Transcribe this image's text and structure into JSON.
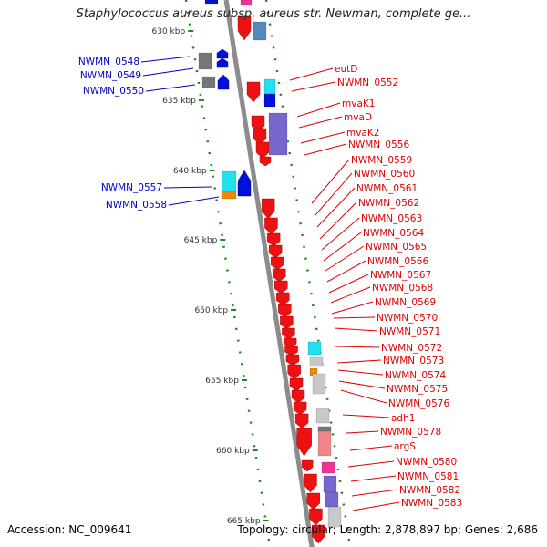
{
  "title": "Staphylococcus aureus subsp. aureus str. Newman, complete ge...",
  "footer": {
    "accession": "Accession: NC_009641",
    "summary": "Topology: circular; Length: 2,878,897 bp; Genes: 2,686"
  },
  "colors": {
    "backbone": "#8c8c8c",
    "ruler": "#1a8a1a",
    "forward_label": "#0000cc",
    "reverse_label": "#dd0000",
    "red_gene": "#ee1111",
    "blue_gene": "#0011dd",
    "gray_gene": "#777777",
    "cyan_gene": "#22e0ee",
    "purple_gene": "#7766cc",
    "orange_gene": "#ee8800",
    "pink_gene": "#ee3399",
    "salmon_gene": "#ee8888",
    "light_gray_gene": "#c8c8c8"
  },
  "ruler_ticks": [
    "630 kbp",
    "635 kbp",
    "640 kbp",
    "645 kbp",
    "650 kbp",
    "655 kbp",
    "660 kbp",
    "665 kbp"
  ],
  "forward_genes": [
    "NWMN_0548",
    "NWMN_0549",
    "NWMN_0550",
    "NWMN_0557",
    "NWMN_0558"
  ],
  "reverse_genes": [
    "eutD",
    "NWMN_0552",
    "mvaK1",
    "mvaD",
    "mvaK2",
    "NWMN_0556",
    "NWMN_0559",
    "NWMN_0560",
    "NWMN_0561",
    "NWMN_0562",
    "NWMN_0563",
    "NWMN_0564",
    "NWMN_0565",
    "NWMN_0566",
    "NWMN_0567",
    "NWMN_0568",
    "NWMN_0569",
    "NWMN_0570",
    "NWMN_0571",
    "NWMN_0572",
    "NWMN_0573",
    "NWMN_0574",
    "NWMN_0575",
    "NWMN_0576",
    "adh1",
    "NWMN_0578",
    "argS",
    "NWMN_0580",
    "NWMN_0581",
    "NWMN_0582",
    "NWMN_0583"
  ]
}
